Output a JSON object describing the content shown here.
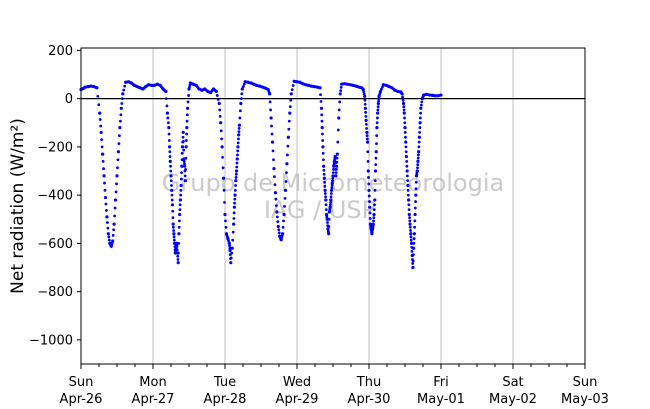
{
  "chart_data": {
    "type": "scatter",
    "title": "",
    "xlabel": "",
    "ylabel": "Net radiation (W/m²)",
    "ylim": [
      -1100,
      210
    ],
    "xlim": [
      0,
      7
    ],
    "yticks": [
      200,
      0,
      -200,
      -400,
      -600,
      -800,
      -1000
    ],
    "x_ticks": [
      {
        "day": "Sun",
        "date": "Apr-26"
      },
      {
        "day": "Mon",
        "date": "Apr-27"
      },
      {
        "day": "Tue",
        "date": "Apr-28"
      },
      {
        "day": "Wed",
        "date": "Apr-29"
      },
      {
        "day": "Thu",
        "date": "Apr-30"
      },
      {
        "day": "Fri",
        "date": "May-01"
      },
      {
        "day": "Sat",
        "date": "May-02"
      },
      {
        "day": "Sun",
        "date": "May-03"
      }
    ],
    "x_units": "days since Sun Apr-26 00:00",
    "grid": "vertical",
    "zero_line": true,
    "marker_color": "#0000ff",
    "watermark": [
      "Grupo de Micrometeorologia",
      "IAG / USP"
    ],
    "series": [
      {
        "color": "#0000ff",
        "points": [
          [
            0.0,
            38
          ],
          [
            0.03,
            42
          ],
          [
            0.06,
            48
          ],
          [
            0.1,
            50
          ],
          [
            0.14,
            52
          ],
          [
            0.18,
            50
          ],
          [
            0.22,
            45
          ],
          [
            0.26,
            -60
          ],
          [
            0.28,
            -140
          ],
          [
            0.3,
            -230
          ],
          [
            0.32,
            -320
          ],
          [
            0.34,
            -410
          ],
          [
            0.36,
            -490
          ],
          [
            0.38,
            -560
          ],
          [
            0.4,
            -600
          ],
          [
            0.42,
            -612
          ],
          [
            0.44,
            -590
          ],
          [
            0.46,
            -520
          ],
          [
            0.48,
            -420
          ],
          [
            0.5,
            -320
          ],
          [
            0.52,
            -220
          ],
          [
            0.54,
            -120
          ],
          [
            0.56,
            -40
          ],
          [
            0.58,
            20
          ],
          [
            0.62,
            68
          ],
          [
            0.66,
            70
          ],
          [
            0.7,
            65
          ],
          [
            0.74,
            55
          ],
          [
            0.78,
            50
          ],
          [
            0.82,
            45
          ],
          [
            0.86,
            40
          ],
          [
            0.9,
            50
          ],
          [
            0.94,
            58
          ],
          [
            0.98,
            55
          ],
          [
            1.02,
            55
          ],
          [
            1.06,
            60
          ],
          [
            1.1,
            55
          ],
          [
            1.14,
            40
          ],
          [
            1.18,
            30
          ],
          [
            1.2,
            -60
          ],
          [
            1.22,
            -120
          ],
          [
            1.23,
            -200
          ],
          [
            1.24,
            -260
          ],
          [
            1.25,
            -320
          ],
          [
            1.26,
            -380
          ],
          [
            1.27,
            -440
          ],
          [
            1.28,
            -520
          ],
          [
            1.29,
            -560
          ],
          [
            1.3,
            -600
          ],
          [
            1.31,
            -640
          ],
          [
            1.32,
            -620
          ],
          [
            1.33,
            -600
          ],
          [
            1.34,
            -640
          ],
          [
            1.35,
            -680
          ],
          [
            1.36,
            -560
          ],
          [
            1.37,
            -480
          ],
          [
            1.38,
            -420
          ],
          [
            1.39,
            -360
          ],
          [
            1.4,
            -280
          ],
          [
            1.41,
            -200
          ],
          [
            1.42,
            -140
          ],
          [
            1.43,
            -250
          ],
          [
            1.44,
            -280
          ],
          [
            1.45,
            -340
          ],
          [
            1.46,
            -200
          ],
          [
            1.47,
            -120
          ],
          [
            1.48,
            -40
          ],
          [
            1.5,
            40
          ],
          [
            1.52,
            65
          ],
          [
            1.56,
            60
          ],
          [
            1.6,
            55
          ],
          [
            1.64,
            40
          ],
          [
            1.68,
            35
          ],
          [
            1.72,
            40
          ],
          [
            1.76,
            30
          ],
          [
            1.8,
            25
          ],
          [
            1.84,
            40
          ],
          [
            1.88,
            30
          ],
          [
            1.92,
            -20
          ],
          [
            1.94,
            -100
          ],
          [
            1.96,
            -200
          ],
          [
            1.98,
            -330
          ],
          [
            2.0,
            -480
          ],
          [
            2.02,
            -560
          ],
          [
            2.04,
            -580
          ],
          [
            2.06,
            -600
          ],
          [
            2.07,
            -630
          ],
          [
            2.08,
            -680
          ],
          [
            2.1,
            -620
          ],
          [
            2.12,
            -520
          ],
          [
            2.13,
            -450
          ],
          [
            2.14,
            -400
          ],
          [
            2.15,
            -340
          ],
          [
            2.16,
            -300
          ],
          [
            2.17,
            -250
          ],
          [
            2.18,
            -200
          ],
          [
            2.19,
            -150
          ],
          [
            2.2,
            -110
          ],
          [
            2.22,
            -20
          ],
          [
            2.24,
            40
          ],
          [
            2.28,
            70
          ],
          [
            2.32,
            68
          ],
          [
            2.36,
            65
          ],
          [
            2.4,
            60
          ],
          [
            2.44,
            55
          ],
          [
            2.48,
            52
          ],
          [
            2.52,
            48
          ],
          [
            2.56,
            44
          ],
          [
            2.6,
            38
          ],
          [
            2.62,
            20
          ],
          [
            2.64,
            -80
          ],
          [
            2.66,
            -180
          ],
          [
            2.68,
            -290
          ],
          [
            2.7,
            -390
          ],
          [
            2.72,
            -470
          ],
          [
            2.74,
            -530
          ],
          [
            2.76,
            -570
          ],
          [
            2.78,
            -585
          ],
          [
            2.8,
            -560
          ],
          [
            2.82,
            -480
          ],
          [
            2.84,
            -380
          ],
          [
            2.86,
            -270
          ],
          [
            2.88,
            -160
          ],
          [
            2.9,
            -60
          ],
          [
            2.92,
            20
          ],
          [
            2.96,
            72
          ],
          [
            3.0,
            70
          ],
          [
            3.04,
            68
          ],
          [
            3.08,
            62
          ],
          [
            3.12,
            58
          ],
          [
            3.16,
            55
          ],
          [
            3.2,
            52
          ],
          [
            3.24,
            50
          ],
          [
            3.28,
            48
          ],
          [
            3.32,
            45
          ],
          [
            3.34,
            -40
          ],
          [
            3.35,
            -120
          ],
          [
            3.36,
            -200
          ],
          [
            3.37,
            -280
          ],
          [
            3.38,
            -330
          ],
          [
            3.39,
            -380
          ],
          [
            3.4,
            -420
          ],
          [
            3.41,
            -480
          ],
          [
            3.42,
            -500
          ],
          [
            3.43,
            -540
          ],
          [
            3.44,
            -560
          ],
          [
            3.45,
            -470
          ],
          [
            3.46,
            -450
          ],
          [
            3.47,
            -420
          ],
          [
            3.48,
            -380
          ],
          [
            3.49,
            -350
          ],
          [
            3.5,
            -320
          ],
          [
            3.51,
            -280
          ],
          [
            3.52,
            -260
          ],
          [
            3.53,
            -240
          ],
          [
            3.54,
            -320
          ],
          [
            3.55,
            -280
          ],
          [
            3.56,
            -230
          ],
          [
            3.58,
            -80
          ],
          [
            3.6,
            20
          ],
          [
            3.62,
            60
          ],
          [
            3.66,
            62
          ],
          [
            3.7,
            60
          ],
          [
            3.74,
            58
          ],
          [
            3.78,
            55
          ],
          [
            3.82,
            52
          ],
          [
            3.86,
            48
          ],
          [
            3.9,
            45
          ],
          [
            3.92,
            38
          ],
          [
            3.94,
            10
          ],
          [
            3.95,
            -40
          ],
          [
            3.96,
            -90
          ],
          [
            3.97,
            -140
          ],
          [
            3.98,
            -180
          ],
          [
            3.99,
            -300
          ],
          [
            4.0,
            -380
          ],
          [
            4.01,
            -450
          ],
          [
            4.02,
            -520
          ],
          [
            4.03,
            -540
          ],
          [
            4.04,
            -560
          ],
          [
            4.05,
            -540
          ],
          [
            4.06,
            -520
          ],
          [
            4.07,
            -480
          ],
          [
            4.08,
            -420
          ],
          [
            4.09,
            -300
          ],
          [
            4.1,
            -220
          ],
          [
            4.11,
            -120
          ],
          [
            4.12,
            -60
          ],
          [
            4.13,
            -20
          ],
          [
            4.14,
            10
          ],
          [
            4.16,
            30
          ],
          [
            4.2,
            58
          ],
          [
            4.24,
            55
          ],
          [
            4.28,
            50
          ],
          [
            4.32,
            45
          ],
          [
            4.36,
            35
          ],
          [
            4.4,
            30
          ],
          [
            4.44,
            28
          ],
          [
            4.46,
            20
          ],
          [
            4.48,
            -20
          ],
          [
            4.49,
            -60
          ],
          [
            4.5,
            -120
          ],
          [
            4.51,
            -180
          ],
          [
            4.52,
            -240
          ],
          [
            4.53,
            -300
          ],
          [
            4.54,
            -360
          ],
          [
            4.55,
            -420
          ],
          [
            4.56,
            -480
          ],
          [
            4.57,
            -520
          ],
          [
            4.58,
            -560
          ],
          [
            4.59,
            -600
          ],
          [
            4.6,
            -650
          ],
          [
            4.61,
            -700
          ],
          [
            4.62,
            -620
          ],
          [
            4.63,
            -560
          ],
          [
            4.64,
            -480
          ],
          [
            4.65,
            -400
          ],
          [
            4.66,
            -320
          ],
          [
            4.67,
            -300
          ],
          [
            4.68,
            -260
          ],
          [
            4.69,
            -220
          ],
          [
            4.7,
            -160
          ],
          [
            4.71,
            -100
          ],
          [
            4.72,
            -40
          ],
          [
            4.74,
            0
          ],
          [
            4.76,
            15
          ],
          [
            4.8,
            18
          ],
          [
            4.84,
            15
          ],
          [
            4.88,
            14
          ],
          [
            4.92,
            12
          ],
          [
            4.96,
            12
          ],
          [
            5.0,
            15
          ]
        ]
      }
    ]
  }
}
